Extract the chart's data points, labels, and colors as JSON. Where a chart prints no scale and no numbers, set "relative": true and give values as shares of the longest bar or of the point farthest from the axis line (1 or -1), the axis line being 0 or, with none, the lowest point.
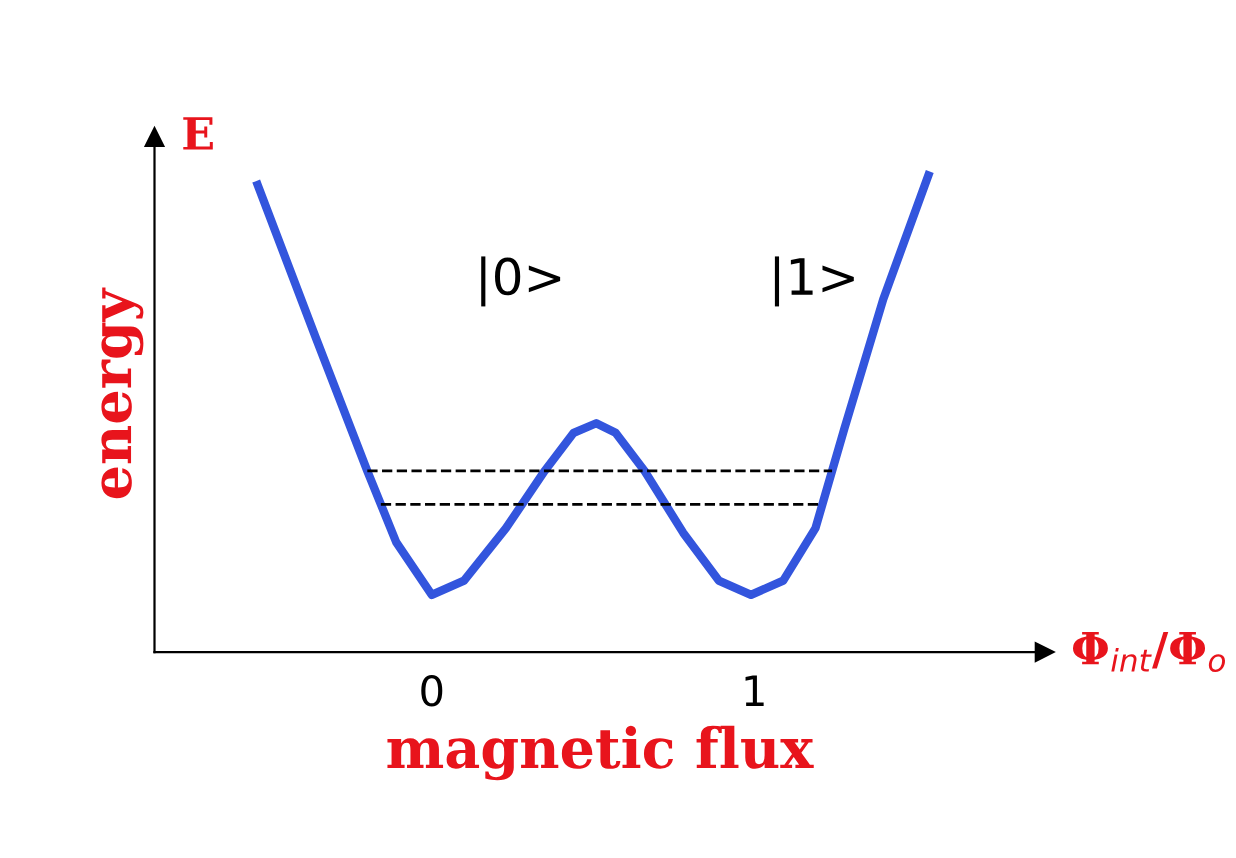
{
  "chart_data": {
    "type": "line",
    "relative": true,
    "xlabel": "magnetic flux",
    "ylabel": "energy",
    "x": [
      -0.54,
      -0.36,
      -0.2,
      -0.11,
      0,
      0.1,
      0.23,
      0.35,
      0.44,
      0.51,
      0.57,
      0.66,
      0.78,
      0.89,
      0.99,
      1.09,
      1.19,
      1.28,
      1.4,
      1.54
    ],
    "series": [
      {
        "color": "#3355dd",
        "values": [
          0.98,
          0.66,
          0.38,
          0.23,
          0.12,
          0.15,
          0.26,
          0.38,
          0.46,
          0.48,
          0.46,
          0.38,
          0.25,
          0.15,
          0.12,
          0.15,
          0.26,
          0.47,
          0.74,
          1.0
        ]
      }
    ],
    "xlim": [
      -0.86,
      1.9
    ],
    "xticks": [
      0,
      1
    ],
    "ref_lines": [
      {
        "axis": "y",
        "value": 0.38,
        "color": "#000000",
        "line_style": "dashed"
      },
      {
        "axis": "y",
        "value": 0.31,
        "color": "#000000",
        "line_style": "dashed"
      }
    ],
    "annotations": [
      "|0>",
      "|1>",
      "E",
      "Φ$_{int}$/Φ$_{o}$"
    ],
    "legend": false,
    "grid": false,
    "marker": "none",
    "line_style": "solid"
  }
}
